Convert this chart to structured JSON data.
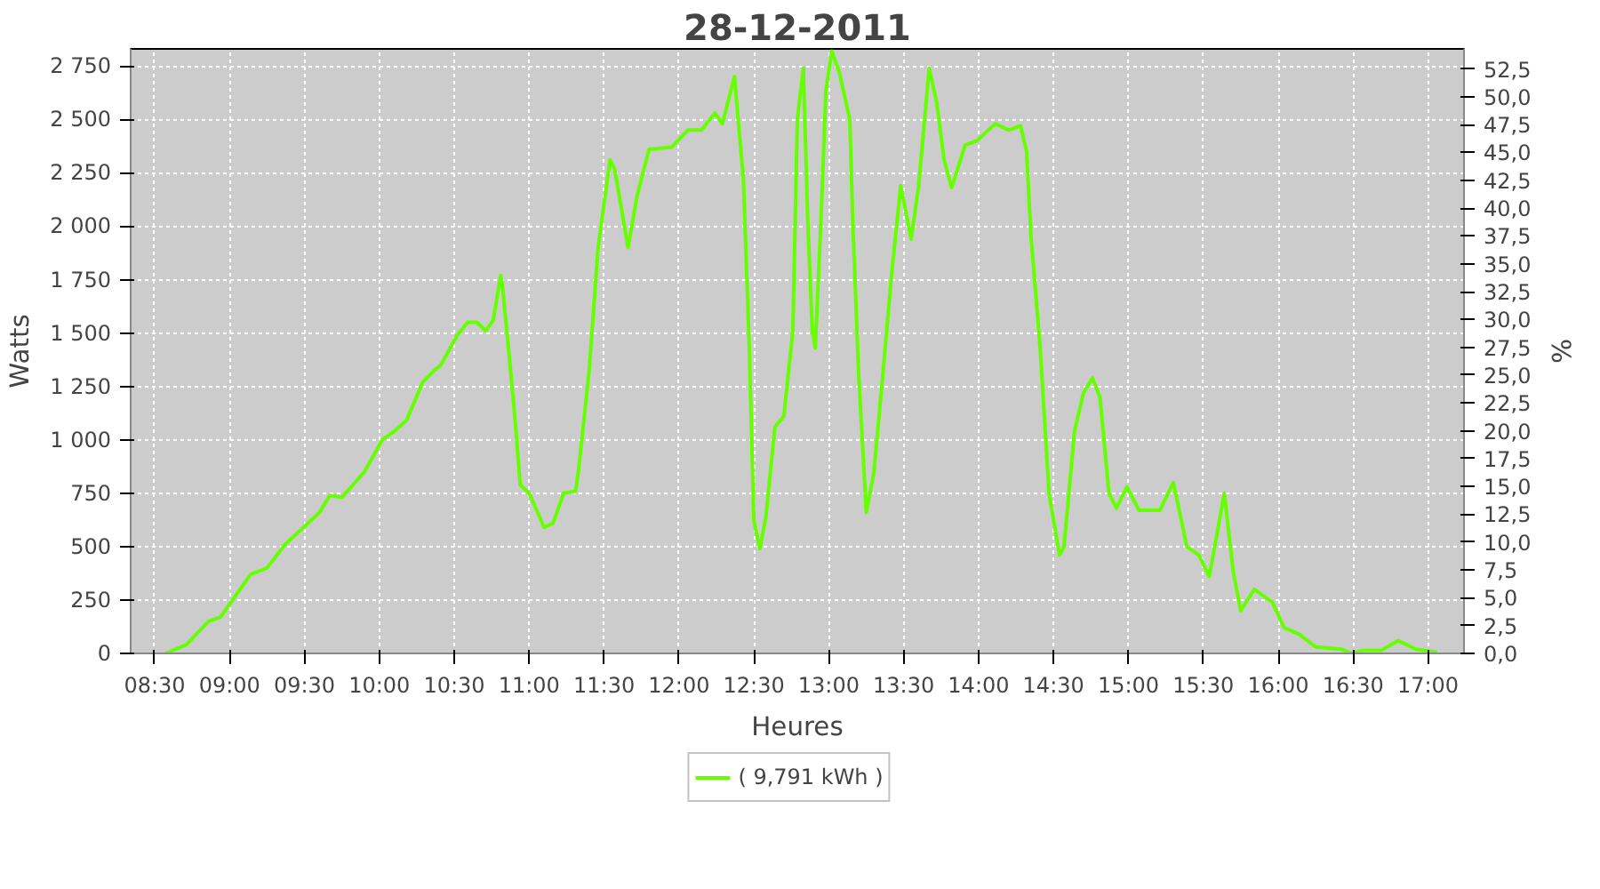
{
  "chart_data": {
    "type": "line",
    "title": "28-12-2011",
    "xlabel": "Heures",
    "ylabel": "Watts",
    "y2label": "%",
    "xlim": [
      8.34,
      17.24
    ],
    "ylim": [
      0,
      2830
    ],
    "y2lim": [
      0,
      54.3
    ],
    "xticks": [
      {
        "value": 8.5,
        "label": "08:30"
      },
      {
        "value": 9,
        "label": "09:00"
      },
      {
        "value": 9.5,
        "label": "09:30"
      },
      {
        "value": 10,
        "label": "10:00"
      },
      {
        "value": 10.5,
        "label": "10:30"
      },
      {
        "value": 11,
        "label": "11:00"
      },
      {
        "value": 11.5,
        "label": "11:30"
      },
      {
        "value": 12,
        "label": "12:00"
      },
      {
        "value": 12.5,
        "label": "12:30"
      },
      {
        "value": 13,
        "label": "13:00"
      },
      {
        "value": 13.5,
        "label": "13:30"
      },
      {
        "value": 14,
        "label": "14:00"
      },
      {
        "value": 14.5,
        "label": "14:30"
      },
      {
        "value": 15,
        "label": "15:00"
      },
      {
        "value": 15.5,
        "label": "15:30"
      },
      {
        "value": 16,
        "label": "16:00"
      },
      {
        "value": 16.5,
        "label": "16:30"
      },
      {
        "value": 17,
        "label": "17:00"
      }
    ],
    "yticks": [
      0,
      250,
      500,
      750,
      {
        "value": 1000,
        "label": "1 000"
      },
      {
        "value": 1250,
        "label": "1 250"
      },
      {
        "value": 1500,
        "label": "1 500"
      },
      {
        "value": 1750,
        "label": "1 750"
      },
      {
        "value": 2000,
        "label": "2 000"
      },
      {
        "value": 2250,
        "label": "2 250"
      },
      {
        "value": 2500,
        "label": "2 500"
      },
      {
        "value": 2750,
        "label": "2 750"
      }
    ],
    "y2ticks": [
      {
        "value": 0,
        "label": "0,0"
      },
      {
        "value": 2.5,
        "label": "2,5"
      },
      {
        "value": 5,
        "label": "5,0"
      },
      {
        "value": 7.5,
        "label": "7,5"
      },
      {
        "value": 10,
        "label": "10,0"
      },
      {
        "value": 12.5,
        "label": "12,5"
      },
      {
        "value": 15,
        "label": "15,0"
      },
      {
        "value": 17.5,
        "label": "17,5"
      },
      {
        "value": 20,
        "label": "20,0"
      },
      {
        "value": 22.5,
        "label": "22,5"
      },
      {
        "value": 25,
        "label": "25,0"
      },
      {
        "value": 27.5,
        "label": "27,5"
      },
      {
        "value": 30,
        "label": "30,0"
      },
      {
        "value": 32.5,
        "label": "32,5"
      },
      {
        "value": 35,
        "label": "35,0"
      },
      {
        "value": 37.5,
        "label": "37,5"
      },
      {
        "value": 40,
        "label": "40,0"
      },
      {
        "value": 42.5,
        "label": "42,5"
      },
      {
        "value": 45,
        "label": "45,0"
      },
      {
        "value": 47.5,
        "label": "47,5"
      },
      {
        "value": 50,
        "label": "50,0"
      },
      {
        "value": 52.5,
        "label": "52,5"
      }
    ],
    "grid": true,
    "legend": "bottom",
    "line_style": "solid",
    "series": [
      {
        "name": "( 9,791 kWh )",
        "color": "#66ff00",
        "x": [
          8.57,
          8.71,
          8.86,
          8.94,
          9.14,
          9.25,
          9.37,
          9.6,
          9.67,
          9.75,
          9.9,
          10.02,
          10.1,
          10.18,
          10.29,
          10.36,
          10.41,
          10.52,
          10.59,
          10.65,
          10.71,
          10.76,
          10.81,
          10.82,
          10.87,
          10.91,
          10.94,
          11.0,
          11.1,
          11.16,
          11.23,
          11.31,
          11.33,
          11.4,
          11.46,
          11.54,
          11.57,
          11.66,
          11.72,
          11.8,
          11.95,
          12.06,
          12.15,
          12.24,
          12.29,
          12.37,
          12.43,
          12.47,
          12.5,
          12.54,
          12.58,
          12.64,
          12.7,
          12.76,
          12.79,
          12.83,
          12.86,
          12.89,
          12.91,
          12.95,
          12.98,
          13.02,
          13.07,
          13.14,
          13.16,
          13.2,
          13.25,
          13.3,
          13.36,
          13.42,
          13.48,
          13.55,
          13.6,
          13.67,
          13.72,
          13.77,
          13.82,
          13.91,
          13.99,
          14.11,
          14.2,
          14.28,
          14.32,
          14.35,
          14.41,
          14.47,
          14.54,
          14.57,
          14.64,
          14.7,
          14.76,
          14.81,
          14.87,
          14.92,
          14.99,
          15.07,
          15.21,
          15.3,
          15.39,
          15.47,
          15.54,
          15.64,
          15.7,
          15.75,
          15.84,
          15.96,
          16.04,
          16.14,
          16.25,
          16.42,
          16.49,
          16.57,
          16.69,
          16.8,
          16.92,
          17.06
        ],
        "values": [
          0,
          40,
          150,
          170,
          370,
          400,
          510,
          660,
          740,
          730,
          850,
          1000,
          1040,
          1090,
          1270,
          1320,
          1350,
          1490,
          1550,
          1550,
          1510,
          1560,
          1770,
          1730,
          1370,
          1060,
          790,
          750,
          590,
          610,
          750,
          760,
          860,
          1320,
          1900,
          2310,
          2270,
          1900,
          2140,
          2360,
          2370,
          2450,
          2450,
          2530,
          2480,
          2700,
          2220,
          1420,
          620,
          490,
          640,
          1060,
          1110,
          1510,
          2500,
          2740,
          2020,
          1510,
          1430,
          2070,
          2630,
          2820,
          2720,
          2500,
          2020,
          1300,
          660,
          840,
          1300,
          1780,
          2190,
          1940,
          2190,
          2740,
          2580,
          2310,
          2180,
          2380,
          2400,
          2480,
          2450,
          2470,
          2350,
          1950,
          1440,
          750,
          460,
          500,
          1040,
          1220,
          1290,
          1200,
          750,
          680,
          780,
          670,
          670,
          800,
          500,
          460,
          360,
          750,
          380,
          200,
          300,
          240,
          120,
          90,
          30,
          20,
          0,
          15,
          15,
          60,
          20,
          5
        ]
      }
    ]
  }
}
